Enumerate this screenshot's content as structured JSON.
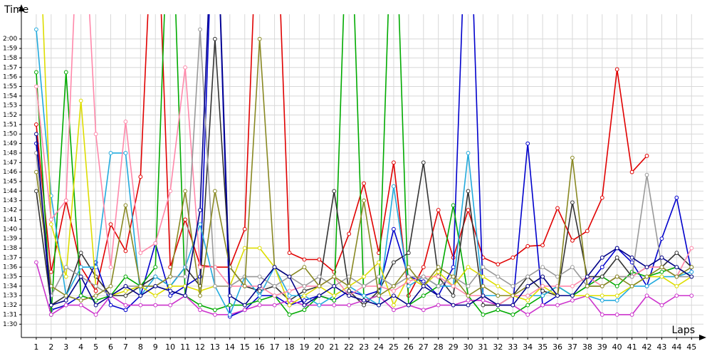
{
  "chart_data": {
    "type": "line",
    "ylabel": "Time",
    "xlabel": "Laps",
    "x": [
      1,
      2,
      3,
      4,
      5,
      6,
      7,
      8,
      9,
      10,
      11,
      12,
      13,
      14,
      15,
      16,
      17,
      18,
      19,
      20,
      21,
      22,
      23,
      24,
      25,
      26,
      27,
      28,
      29,
      30,
      31,
      32,
      33,
      34,
      35,
      36,
      37,
      38,
      39,
      40,
      41,
      42,
      43,
      44,
      45
    ],
    "xlim": [
      0,
      45.8
    ],
    "xticks": [
      1,
      2,
      3,
      4,
      5,
      6,
      7,
      8,
      9,
      10,
      11,
      12,
      13,
      14,
      15,
      16,
      17,
      18,
      19,
      20,
      21,
      22,
      23,
      24,
      25,
      26,
      27,
      28,
      29,
      30,
      31,
      32,
      33,
      34,
      35,
      36,
      37,
      38,
      39,
      40,
      41,
      42,
      43,
      44,
      45
    ],
    "ylim": [
      88.6,
      122.6
    ],
    "yticks": [
      {
        "value": 90,
        "label": "1:30"
      },
      {
        "value": 91,
        "label": "1:31"
      },
      {
        "value": 92,
        "label": "1:32"
      },
      {
        "value": 93,
        "label": "1:33"
      },
      {
        "value": 94,
        "label": "1:34"
      },
      {
        "value": 95,
        "label": "1:35"
      },
      {
        "value": 96,
        "label": "1:36"
      },
      {
        "value": 97,
        "label": "1:37"
      },
      {
        "value": 98,
        "label": "1:38"
      },
      {
        "value": 99,
        "label": "1:39"
      },
      {
        "value": 100,
        "label": "1:40"
      },
      {
        "value": 101,
        "label": "1:41"
      },
      {
        "value": 102,
        "label": "1:42"
      },
      {
        "value": 103,
        "label": "1:43"
      },
      {
        "value": 104,
        "label": "1:44"
      },
      {
        "value": 105,
        "label": "1:45"
      },
      {
        "value": 106,
        "label": "1:46"
      },
      {
        "value": 107,
        "label": "1:47"
      },
      {
        "value": 108,
        "label": "1:48"
      },
      {
        "value": 109,
        "label": "1:49"
      },
      {
        "value": 110,
        "label": "1:50"
      },
      {
        "value": 111,
        "label": "1:51"
      },
      {
        "value": 112,
        "label": "1:52"
      },
      {
        "value": 113,
        "label": "1:53"
      },
      {
        "value": 114,
        "label": "1:54"
      },
      {
        "value": 115,
        "label": "1:55"
      },
      {
        "value": 116,
        "label": "1:56"
      },
      {
        "value": 117,
        "label": "1:57"
      },
      {
        "value": 118,
        "label": "1:58"
      },
      {
        "value": 119,
        "label": "1:59"
      },
      {
        "value": 120,
        "label": "2:00"
      }
    ],
    "grid": true,
    "series": [
      {
        "color": "#e00000",
        "values": [
          111,
          95.5,
          103,
          96,
          93.5,
          100.5,
          97.7,
          105.5,
          140,
          96,
          101,
          96.2,
          96,
          96,
          100,
          140,
          140,
          97.5,
          96.8,
          96.8,
          95.5,
          99.5,
          104.8,
          97.5,
          107,
          93,
          96,
          102,
          97,
          102,
          97,
          96.3,
          97,
          98.2,
          98.3,
          102.2,
          98.8,
          99.8,
          103.3,
          116.8,
          106,
          107.7,
          null,
          null,
          null
        ]
      },
      {
        "color": "#0000cc",
        "values": [
          109,
          91.5,
          92,
          93,
          96.5,
          92,
          91.5,
          93,
          98.5,
          93,
          94,
          95,
          140,
          90.8,
          91.5,
          93,
          93,
          92,
          92.5,
          93,
          92.5,
          93.5,
          93,
          93.5,
          100,
          95,
          94.5,
          93,
          96,
          140,
          93,
          92,
          92,
          109,
          92,
          93,
          93,
          94,
          96,
          98,
          96.5,
          94,
          99,
          103.3,
          95.5
        ]
      },
      {
        "color": "#00aa00",
        "values": [
          116.5,
          91,
          116.5,
          93,
          92.5,
          93,
          95,
          94,
          96,
          140,
          93,
          92,
          91.5,
          92,
          92,
          92.5,
          93,
          91,
          91.5,
          93,
          92.5,
          140,
          92.5,
          93,
          140,
          92,
          93,
          94,
          102.5,
          93,
          91,
          91.5,
          91,
          92,
          93,
          94,
          93,
          94,
          95,
          94,
          95.5,
          95,
          95.5,
          96,
          95
        ]
      },
      {
        "color": "#333333",
        "values": [
          104,
          92,
          93,
          97.5,
          95,
          93,
          93,
          94,
          95,
          94,
          96,
          94,
          120,
          96,
          94,
          93.5,
          94,
          92.5,
          93.5,
          94,
          104,
          93.5,
          92,
          93.5,
          96.5,
          97.5,
          107,
          95,
          93,
          104,
          92,
          92,
          93,
          95,
          93.5,
          93,
          102.8,
          95,
          95,
          97,
          95,
          96,
          96,
          97.5,
          96
        ]
      },
      {
        "color": "#cc33cc",
        "values": [
          96.5,
          91,
          92,
          92,
          91,
          93,
          92,
          92,
          92,
          92,
          93,
          91.5,
          91,
          91,
          91.5,
          92,
          92,
          92.5,
          92,
          92,
          92,
          92,
          92.5,
          93,
          91.5,
          92,
          91.5,
          92,
          92,
          92.5,
          92.5,
          92,
          92,
          91,
          92,
          92,
          92.5,
          93,
          91,
          91,
          91,
          93,
          92,
          93,
          93
        ]
      },
      {
        "color": "#22aadd",
        "values": [
          121,
          103.5,
          93,
          96,
          96,
          108,
          108,
          93,
          95,
          94,
          96,
          100.5,
          94,
          91,
          95,
          93,
          96,
          93,
          93,
          92,
          93,
          94,
          93,
          92,
          104.5,
          94,
          95,
          94,
          94,
          108,
          93,
          93,
          93,
          93,
          93,
          94,
          93,
          93,
          92.5,
          92.5,
          94,
          94,
          95,
          95,
          95.5
        ]
      },
      {
        "color": "#dddd00",
        "values": [
          140,
          100.5,
          95,
          113.5,
          94,
          93,
          93.5,
          94,
          93,
          94,
          94,
          93.5,
          94,
          94,
          98,
          98,
          96,
          92,
          93,
          94,
          93,
          94,
          95,
          96.5,
          92,
          95,
          94,
          95.5,
          94,
          96,
          95,
          94,
          93,
          92.5,
          94,
          93,
          93,
          93,
          93,
          93,
          94,
          95,
          95,
          94,
          95
        ]
      },
      {
        "color": "#ff88aa",
        "values": [
          115,
          101,
          103,
          140,
          110,
          96,
          111.3,
          97.5,
          98.5,
          104,
          117,
          96,
          96,
          94,
          94,
          94,
          93,
          93.5,
          94,
          94,
          95,
          93,
          94,
          94,
          93.5,
          94.5,
          95,
          95,
          94,
          93,
          93,
          92,
          93,
          93,
          94,
          94,
          94,
          95,
          94,
          95,
          95,
          96,
          96,
          95,
          98
        ]
      },
      {
        "color": "#999999",
        "values": [
          108,
          93,
          96,
          95,
          94,
          93,
          94,
          94,
          94,
          95,
          95,
          121,
          94,
          94,
          95,
          95,
          94,
          95,
          94,
          95,
          94,
          95,
          94,
          95,
          94,
          95,
          95,
          94,
          95,
          94,
          96,
          95,
          94,
          95,
          96,
          95,
          96,
          94,
          94,
          95,
          95,
          105.7,
          96,
          95,
          95
        ]
      },
      {
        "color": "#888822",
        "values": [
          106,
          94,
          93,
          92.5,
          93,
          94,
          102.5,
          94,
          94,
          95,
          104,
          93,
          104,
          96,
          94,
          120,
          96,
          95,
          96,
          94,
          95,
          94,
          103,
          93,
          94,
          96,
          94,
          96,
          95,
          93,
          94,
          93,
          93,
          94,
          95,
          93,
          107.5,
          94,
          94,
          95,
          94,
          95,
          96,
          95,
          96
        ]
      },
      {
        "color": "#000088",
        "values": [
          110,
          92,
          92.5,
          95,
          92,
          93,
          94,
          93,
          94,
          93.5,
          93,
          102,
          140,
          93,
          92,
          94,
          96,
          95,
          92,
          93,
          94,
          93,
          92.5,
          92,
          93,
          92,
          94,
          93,
          92,
          92,
          93,
          92,
          92,
          94,
          95,
          93,
          93,
          95,
          97,
          98,
          97,
          96,
          97,
          96,
          95
        ]
      }
    ]
  }
}
